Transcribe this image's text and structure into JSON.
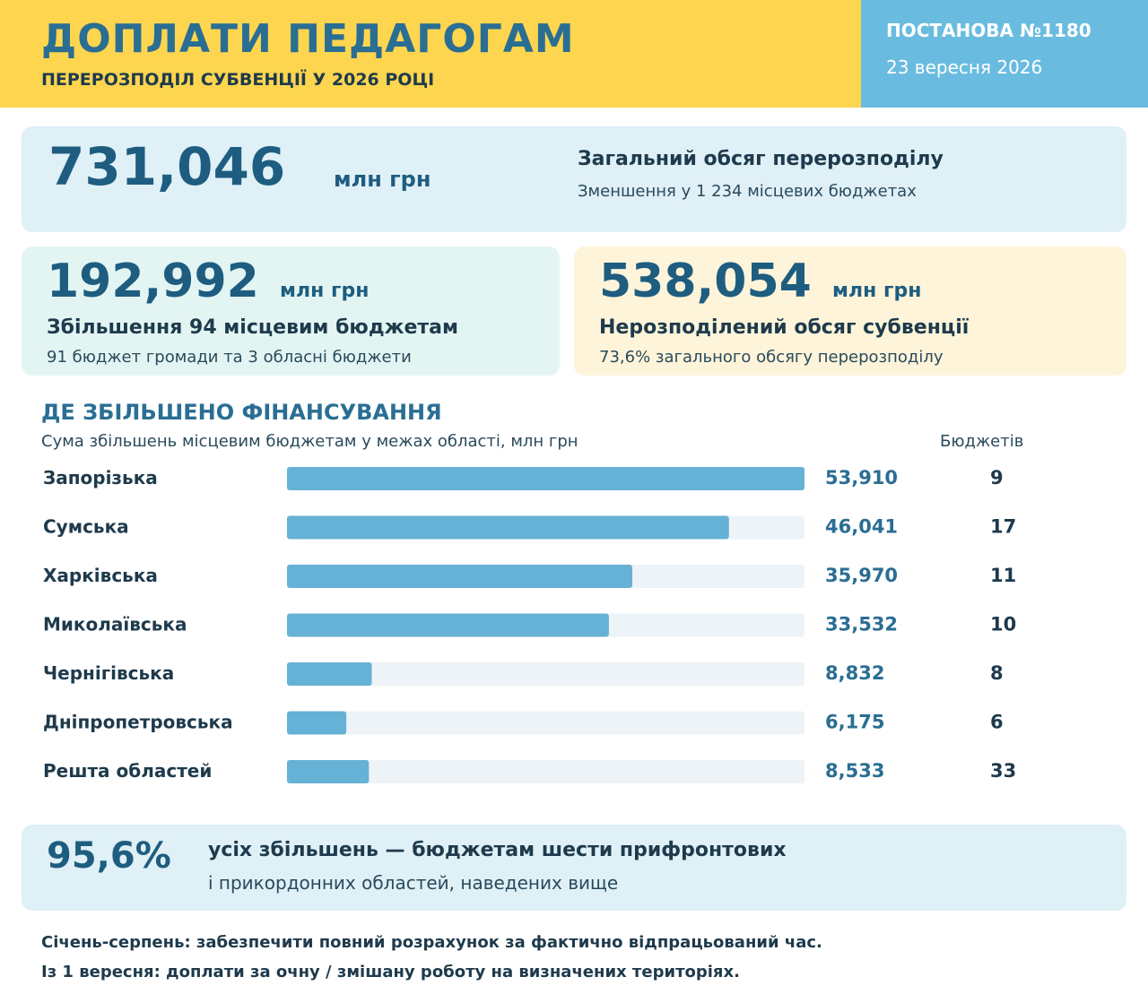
{
  "header": {
    "title": "ДОПЛАТИ ПЕДАГОГАМ",
    "subtitle": "ПЕРЕРОЗПОДІЛ СУБВЕНЦІЇ У 2026 РОЦІ",
    "decree": "ПОСТАНОВА №1180",
    "date": "23 вересня 2026"
  },
  "colors": {
    "header_yellow": "#fdd54f",
    "header_blue": "#69bce0",
    "bar_fill": "#66b1d6",
    "bar_track": "#edf3f6",
    "accent_text": "#1e5d80"
  },
  "total": {
    "value": "731,046",
    "unit": "млн грн",
    "heading": "Загальний обсяг перерозподілу",
    "note": "Зменшення у 1 234 місцевих бюджетах"
  },
  "increase": {
    "value": "192,992",
    "unit": "млн грн",
    "heading": "Збільшення 94 місцевим бюджетам",
    "note": "91 бюджет громади та 3 обласні бюджети"
  },
  "undistributed": {
    "value": "538,054",
    "unit": "млн грн",
    "heading": "Нерозподілений обсяг субвенції",
    "note": "73,6% загального обсягу перерозподілу"
  },
  "section": {
    "title": "ДЕ ЗБІЛЬШЕНО ФІНАНСУВАННЯ",
    "subtitle": "Сума збільшень місцевим бюджетам у межах області, млн грн",
    "budgets_header": "Бюджетів"
  },
  "chart_data": {
    "type": "bar",
    "orientation": "horizontal",
    "categories": [
      "Запорізька",
      "Сумська",
      "Харківська",
      "Миколаївська",
      "Чернігівська",
      "Дніпропетровська",
      "Решта областей"
    ],
    "values": [
      53.91,
      46.041,
      35.97,
      33.532,
      8.832,
      6.175,
      8.533
    ],
    "value_labels": [
      "53,910",
      "46,041",
      "35,970",
      "33,532",
      "8,832",
      "6,175",
      "8,533"
    ],
    "budgets": [
      "9",
      "17",
      "11",
      "10",
      "8",
      "6",
      "33"
    ],
    "xlim": [
      0,
      53.91
    ],
    "title": "ДЕ ЗБІЛЬШЕНО ФІНАНСУВАННЯ",
    "xlabel": "",
    "ylabel": "",
    "grid": false
  },
  "share": {
    "value": "95,6%",
    "line1": "усіх збільшень — бюджетам шести прифронтових",
    "line2": "і прикордонних областей, наведених вище"
  },
  "footnotes": [
    "Січень-серпень: забезпечити повний розрахунок за фактично відпрацьований час.",
    "Із 1 вересня: доплати за очну / змішану роботу на визначених територіях."
  ]
}
